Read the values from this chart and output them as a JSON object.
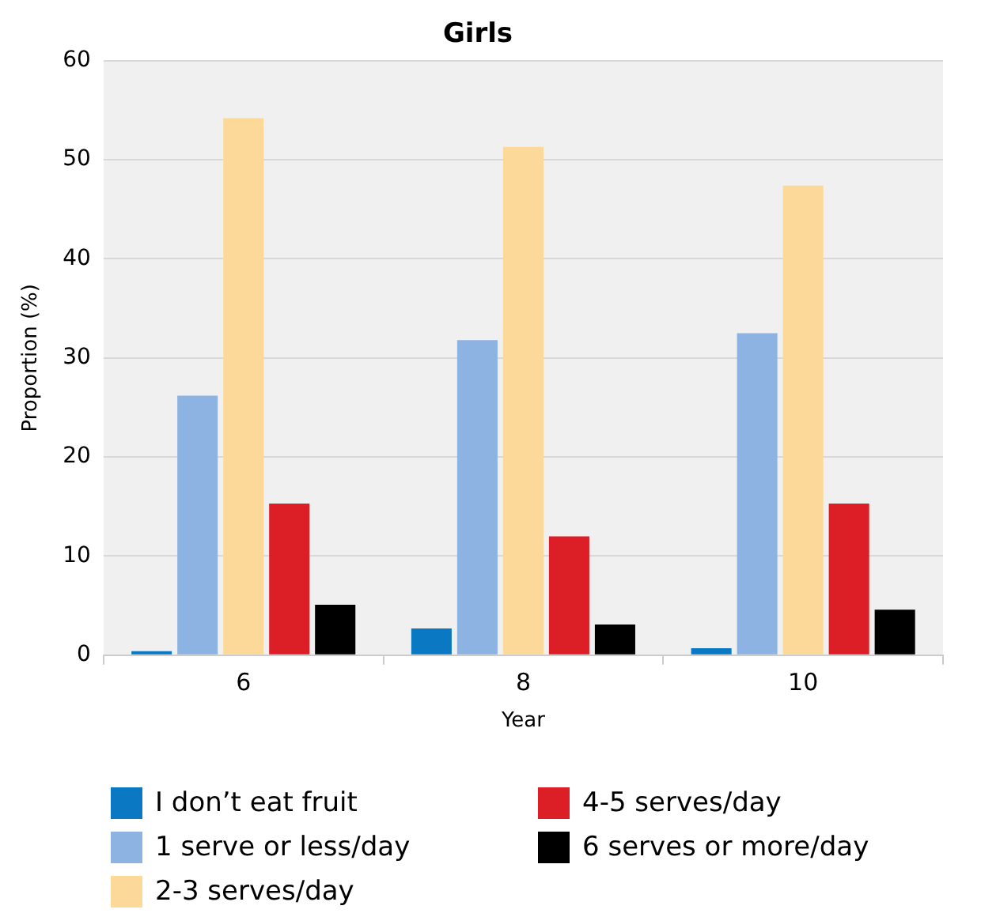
{
  "chart_data": {
    "type": "bar",
    "title": "Girls",
    "xlabel": "Year",
    "ylabel": "Proportion (%)",
    "categories": [
      "6",
      "8",
      "10"
    ],
    "series": [
      {
        "name": "I don’t eat fruit",
        "color": "#0a78c2",
        "values": [
          0.4,
          2.7,
          0.7
        ]
      },
      {
        "name": "1 serve or less/day",
        "color": "#8db3e2",
        "values": [
          26.2,
          31.8,
          32.5
        ]
      },
      {
        "name": "2-3 serves/day",
        "color": "#fdd999",
        "values": [
          54.2,
          51.3,
          47.4
        ]
      },
      {
        "name": "4-5 serves/day",
        "color": "#dc1e26",
        "values": [
          15.3,
          12,
          15.3
        ]
      },
      {
        "name": "6 serves or more/day",
        "color": "#000000",
        "values": [
          5.1,
          3.1,
          4.6
        ]
      }
    ],
    "ylim": [
      0,
      60
    ],
    "yticks": [
      0,
      10,
      20,
      30,
      40,
      50,
      60
    ],
    "grid": "y",
    "legend": "bottom"
  }
}
